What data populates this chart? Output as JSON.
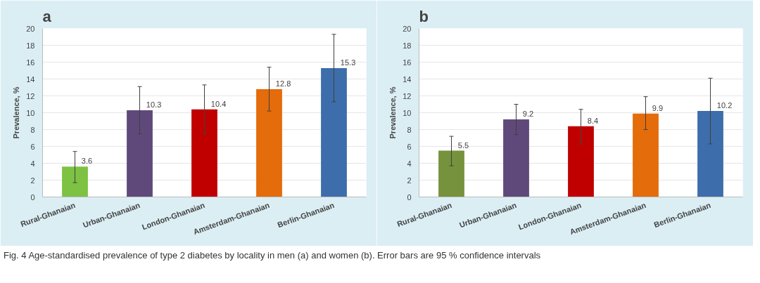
{
  "chart_data": [
    {
      "type": "bar",
      "title": "a",
      "ylabel": "Prevalence, %",
      "categories": [
        "Rural-Ghanaian",
        "Urban-Ghanaian",
        "London-Ghanaian",
        "Amsterdam-Ghanaian",
        "Berlin-Ghanaian"
      ],
      "values": [
        3.6,
        10.3,
        10.4,
        12.8,
        15.3
      ],
      "colors": [
        "#7dc242",
        "#5f497a",
        "#c00000",
        "#e46c0a",
        "#3d6eab"
      ],
      "errors": [
        [
          1.7,
          5.4
        ],
        [
          7.5,
          13.1
        ],
        [
          7.5,
          13.3
        ],
        [
          10.2,
          15.4
        ],
        [
          11.3,
          19.3
        ]
      ],
      "ylim": [
        0,
        20
      ],
      "yticks": [
        0,
        2,
        4,
        6,
        8,
        10,
        12,
        14,
        16,
        18,
        20
      ],
      "grid": "y",
      "data_labels": true,
      "annotations": [
        "Fig. 4 Age-standardised prevalence of type 2 diabetes by locality in men (a) and women (b). Error bars are 95 % confidence intervals"
      ]
    },
    {
      "type": "bar",
      "title": "b",
      "ylabel": "Prevalence, %",
      "categories": [
        "Rural-Ghanaian",
        "Urban-Ghanaian",
        "London-Ghanaian",
        "Amsterdam-Ghanaian",
        "Berlin-Ghanaian"
      ],
      "values": [
        5.5,
        9.2,
        8.4,
        9.9,
        10.2
      ],
      "colors": [
        "#76923c",
        "#5f497a",
        "#c00000",
        "#e46c0a",
        "#3d6eab"
      ],
      "errors": [
        [
          3.7,
          7.2
        ],
        [
          7.4,
          11.0
        ],
        [
          6.3,
          10.4
        ],
        [
          8.0,
          11.9
        ],
        [
          6.3,
          14.1
        ]
      ],
      "ylim": [
        0,
        20
      ],
      "yticks": [
        0,
        2,
        4,
        6,
        8,
        10,
        12,
        14,
        16,
        18,
        20
      ],
      "grid": "y",
      "data_labels": true
    }
  ]
}
